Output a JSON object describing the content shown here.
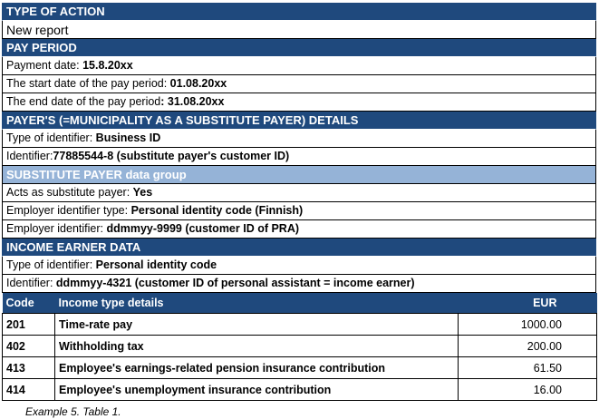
{
  "sections": [
    {
      "header": "TYPE OF ACTION",
      "style": "dark",
      "rows": [
        {
          "label": "New report",
          "value": ""
        }
      ]
    },
    {
      "header": "PAY PERIOD",
      "style": "dark",
      "rows": [
        {
          "label": "Payment date: ",
          "value": "15.8.20xx"
        },
        {
          "label": "The start date of the pay period: ",
          "value": "01.08.20xx"
        },
        {
          "label": "The end date of the pay period",
          "value": ": 31.08.20xx"
        }
      ]
    },
    {
      "header": "PAYER'S (=MUNICIPALITY AS A SUBSTITUTE PAYER) DETAILS",
      "style": "dark",
      "rows": [
        {
          "label": "Type of identifier: ",
          "value": "Business ID"
        },
        {
          "label": "Identifier:",
          "value": "77885544-8 (substitute payer's customer ID)"
        }
      ]
    },
    {
      "header": "SUBSTITUTE PAYER data group",
      "style": "light",
      "rows": [
        {
          "label": "Acts as substitute payer: ",
          "value": "Yes"
        },
        {
          "label": "Employer identifier type: ",
          "value": "Personal identity code (Finnish)"
        },
        {
          "label": "Employer identifier: ",
          "value": "ddmmyy-9999 (customer ID of PRA)"
        }
      ]
    },
    {
      "header": "INCOME EARNER DATA",
      "style": "dark",
      "rows": [
        {
          "label": "Type of identifier: ",
          "value": "Personal identity code"
        },
        {
          "label": "Identifier: ",
          "value": "ddmmyy-4321 (customer ID of personal assistant = income earner)"
        }
      ]
    }
  ],
  "income_table": {
    "columns": [
      "Code",
      "Income type details",
      "EUR"
    ],
    "rows": [
      [
        "201",
        "Time-rate pay",
        "1000.00"
      ],
      [
        "402",
        "Withholding tax",
        "200.00"
      ],
      [
        "413",
        "Employee's earnings-related pension insurance contribution",
        "61.50"
      ],
      [
        "414",
        "Employee's unemployment insurance contribution",
        "16.00"
      ]
    ]
  },
  "caption": "Example 5. Table 1.",
  "colors": {
    "header": "#1f497d",
    "subheader": "#95b3d7"
  }
}
